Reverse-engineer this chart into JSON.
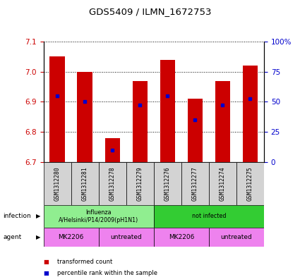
{
  "title": "GDS5409 / ILMN_1672753",
  "samples": [
    "GSM1312280",
    "GSM1312281",
    "GSM1312278",
    "GSM1312279",
    "GSM1312276",
    "GSM1312277",
    "GSM1312274",
    "GSM1312275"
  ],
  "bar_tops": [
    7.05,
    7.0,
    6.78,
    6.97,
    7.04,
    6.91,
    6.97,
    7.02
  ],
  "bar_base": 6.7,
  "percentile_values": [
    6.92,
    6.9,
    6.74,
    6.89,
    6.92,
    6.84,
    6.89,
    6.91
  ],
  "ylim": [
    6.7,
    7.1
  ],
  "yticks_left": [
    6.7,
    6.8,
    6.9,
    7.0,
    7.1
  ],
  "yticks_right": [
    0,
    25,
    50,
    75,
    100
  ],
  "bar_color": "#CC0000",
  "percentile_color": "#0000CC",
  "infection_groups": [
    {
      "label": "Influenza\nA/Helsinki/P14/2009(pH1N1)",
      "start": 0,
      "end": 3,
      "color": "#90EE90"
    },
    {
      "label": "not infected",
      "start": 4,
      "end": 7,
      "color": "#33CC33"
    }
  ],
  "agent_groups": [
    {
      "label": "MK2206",
      "start": 0,
      "end": 1,
      "color": "#EE82EE"
    },
    {
      "label": "untreated",
      "start": 2,
      "end": 3,
      "color": "#EE82EE"
    },
    {
      "label": "MK2206",
      "start": 4,
      "end": 5,
      "color": "#EE82EE"
    },
    {
      "label": "untreated",
      "start": 6,
      "end": 7,
      "color": "#EE82EE"
    }
  ],
  "legend_items": [
    {
      "label": "transformed count",
      "color": "#CC0000"
    },
    {
      "label": "percentile rank within the sample",
      "color": "#0000CC"
    }
  ],
  "tick_label_color_left": "#CC0000",
  "tick_label_color_right": "#0000CC",
  "sample_bg": "#D3D3D3"
}
